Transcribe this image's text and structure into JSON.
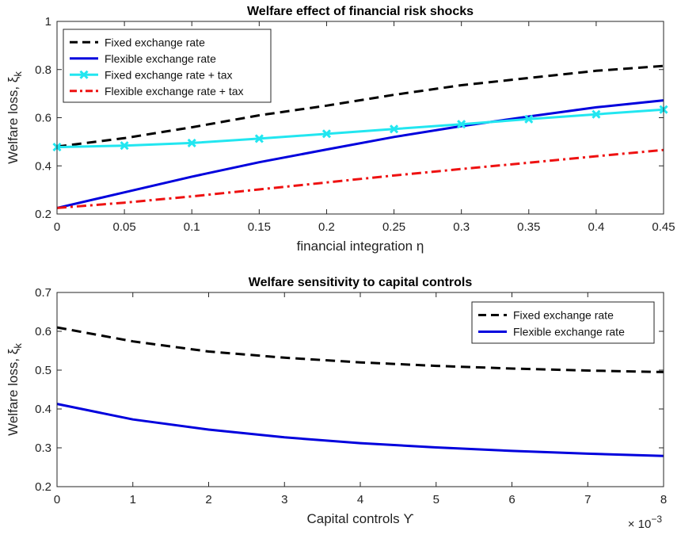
{
  "chart_data": [
    {
      "type": "line",
      "title": "Welfare effect of financial risk shocks",
      "xlabel": "financial integration η",
      "ylabel": "Welfare loss, ξ",
      "ylabel_subscript": "k",
      "xlim": [
        0,
        0.45
      ],
      "ylim": [
        0.2,
        1
      ],
      "xticks": [
        0,
        0.05,
        0.1,
        0.15,
        0.2,
        0.25,
        0.3,
        0.35,
        0.4,
        0.45
      ],
      "yticks": [
        0.2,
        0.4,
        0.6,
        0.8,
        1
      ],
      "grid": false,
      "legend_position": "top-left",
      "x": [
        0,
        0.05,
        0.1,
        0.15,
        0.2,
        0.25,
        0.3,
        0.35,
        0.4,
        0.45
      ],
      "series": [
        {
          "name": "Fixed exchange rate",
          "color": "#000000",
          "style": "dashed",
          "values": [
            0.48,
            0.515,
            0.56,
            0.61,
            0.65,
            0.695,
            0.735,
            0.765,
            0.795,
            0.815
          ]
        },
        {
          "name": "Flexible exchange rate",
          "color": "#0000dd",
          "style": "solid",
          "values": [
            0.225,
            0.29,
            0.355,
            0.415,
            0.468,
            0.52,
            0.565,
            0.605,
            0.643,
            0.672
          ]
        },
        {
          "name": "Fixed exchange rate + tax",
          "color": "#22e6f0",
          "style": "solid-x-markers",
          "values": [
            0.478,
            0.484,
            0.495,
            0.513,
            0.533,
            0.553,
            0.573,
            0.594,
            0.614,
            0.634
          ]
        },
        {
          "name": "Flexible exchange rate + tax",
          "color": "#ee1111",
          "style": "dashdot",
          "values": [
            0.225,
            0.247,
            0.273,
            0.302,
            0.331,
            0.36,
            0.387,
            0.413,
            0.44,
            0.466
          ]
        }
      ]
    },
    {
      "type": "line",
      "title": "Welfare sensitivity to capital controls",
      "xlabel": "Capital controls ϒ",
      "ylabel": "Welfare loss, ξ",
      "ylabel_subscript": "k",
      "xlim": [
        0,
        8
      ],
      "ylim": [
        0.2,
        0.7
      ],
      "xticks": [
        0,
        1,
        2,
        3,
        4,
        5,
        6,
        7,
        8
      ],
      "yticks": [
        0.2,
        0.3,
        0.4,
        0.5,
        0.6,
        0.7
      ],
      "x_multiplier_base": "× 10",
      "x_multiplier_exp": "−3",
      "grid": false,
      "legend_position": "top-right",
      "x": [
        0,
        1,
        2,
        3,
        4,
        5,
        6,
        7,
        8
      ],
      "series": [
        {
          "name": "Fixed exchange rate",
          "color": "#000000",
          "style": "dashed",
          "values": [
            0.61,
            0.574,
            0.548,
            0.532,
            0.52,
            0.511,
            0.504,
            0.499,
            0.495
          ]
        },
        {
          "name": "Flexible exchange rate",
          "color": "#0000dd",
          "style": "solid",
          "values": [
            0.413,
            0.373,
            0.347,
            0.327,
            0.312,
            0.301,
            0.292,
            0.285,
            0.279
          ]
        }
      ]
    }
  ]
}
